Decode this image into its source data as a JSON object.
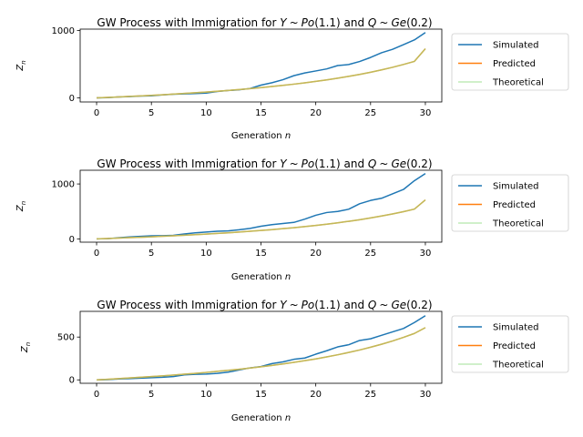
{
  "chart_data": [
    {
      "type": "line",
      "title": "GW Process with Immigration for Y ~ Po(1.1) and Q ~ Ge(0.2)",
      "title_parts": {
        "prefix": "GW Process with Immigration for ",
        "y": "Y",
        "sim": "~",
        "po": "Po",
        "po_arg": "(1.1)",
        "and": " and ",
        "q": "Q",
        "ge": "Ge",
        "ge_arg": "(0.2)"
      },
      "xlabel": "Generation n",
      "xlabel_parts": {
        "text": "Generation ",
        "var": "n"
      },
      "ylabel": "Z_n",
      "ylabel_parts": {
        "var": "Z",
        "sub": "n"
      },
      "xlim": [
        -1.5,
        31.5
      ],
      "ylim": [
        -60,
        1020
      ],
      "xticks": [
        0,
        5,
        10,
        15,
        20,
        25,
        30
      ],
      "yticks": [
        0,
        1000
      ],
      "grid": false,
      "legend_position": "outside-right",
      "series": [
        {
          "name": "Simulated",
          "color": "#1f77b4",
          "x": [
            0,
            1,
            2,
            3,
            4,
            5,
            6,
            7,
            8,
            9,
            10,
            11,
            12,
            13,
            14,
            15,
            16,
            17,
            18,
            19,
            20,
            21,
            22,
            23,
            24,
            25,
            26,
            27,
            28,
            29,
            30
          ],
          "values": [
            0,
            5,
            15,
            20,
            28,
            32,
            45,
            55,
            60,
            65,
            72,
            95,
            110,
            120,
            140,
            190,
            225,
            270,
            330,
            370,
            400,
            430,
            480,
            495,
            540,
            600,
            670,
            720,
            790,
            860,
            970
          ]
        },
        {
          "name": "Predicted",
          "color": "#ff7f0e",
          "x": [
            0,
            1,
            2,
            3,
            4,
            5,
            6,
            7,
            8,
            9,
            10,
            11,
            12,
            13,
            14,
            15,
            16,
            17,
            18,
            19,
            20,
            21,
            22,
            23,
            24,
            25,
            26,
            27,
            28,
            29,
            30
          ],
          "values": [
            0,
            7,
            14,
            22,
            30,
            38,
            47,
            56,
            66,
            76,
            87,
            99,
            111,
            124,
            138,
            153,
            169,
            186,
            204,
            224,
            245,
            268,
            293,
            320,
            349,
            381,
            416,
            454,
            496,
            542,
            730
          ]
        },
        {
          "name": "Theoretical",
          "color": "#98df8a",
          "x": [
            0,
            1,
            2,
            3,
            4,
            5,
            6,
            7,
            8,
            9,
            10,
            11,
            12,
            13,
            14,
            15,
            16,
            17,
            18,
            19,
            20,
            21,
            22,
            23,
            24,
            25,
            26,
            27,
            28,
            29,
            30
          ],
          "values": [
            0,
            7,
            14,
            22,
            30,
            38,
            47,
            56,
            66,
            76,
            87,
            99,
            111,
            124,
            138,
            153,
            169,
            186,
            204,
            224,
            245,
            268,
            293,
            320,
            349,
            381,
            416,
            454,
            496,
            542,
            730
          ]
        }
      ]
    },
    {
      "type": "line",
      "title": "GW Process with Immigration for Y ~ Po(1.1) and Q ~ Ge(0.2)",
      "title_parts": {
        "prefix": "GW Process with Immigration for ",
        "y": "Y",
        "sim": "~",
        "po": "Po",
        "po_arg": "(1.1)",
        "and": " and ",
        "q": "Q",
        "ge": "Ge",
        "ge_arg": "(0.2)"
      },
      "xlabel": "Generation n",
      "xlabel_parts": {
        "text": "Generation ",
        "var": "n"
      },
      "ylabel": "Z_n",
      "ylabel_parts": {
        "var": "Z",
        "sub": "n"
      },
      "xlim": [
        -1.5,
        31.5
      ],
      "ylim": [
        -60,
        1250
      ],
      "xticks": [
        0,
        5,
        10,
        15,
        20,
        25,
        30
      ],
      "yticks": [
        0,
        1000
      ],
      "grid": false,
      "legend_position": "outside-right",
      "series": [
        {
          "name": "Simulated",
          "color": "#1f77b4",
          "x": [
            0,
            1,
            2,
            3,
            4,
            5,
            6,
            7,
            8,
            9,
            10,
            11,
            12,
            13,
            14,
            15,
            16,
            17,
            18,
            19,
            20,
            21,
            22,
            23,
            24,
            25,
            26,
            27,
            28,
            29,
            30
          ],
          "values": [
            0,
            5,
            20,
            35,
            45,
            55,
            58,
            65,
            90,
            110,
            125,
            140,
            145,
            165,
            190,
            230,
            260,
            280,
            300,
            360,
            430,
            480,
            500,
            540,
            640,
            700,
            740,
            820,
            900,
            1060,
            1190
          ]
        },
        {
          "name": "Predicted",
          "color": "#ff7f0e",
          "x": [
            0,
            1,
            2,
            3,
            4,
            5,
            6,
            7,
            8,
            9,
            10,
            11,
            12,
            13,
            14,
            15,
            16,
            17,
            18,
            19,
            20,
            21,
            22,
            23,
            24,
            25,
            26,
            27,
            28,
            29,
            30
          ],
          "values": [
            0,
            7,
            14,
            22,
            30,
            38,
            47,
            56,
            66,
            76,
            87,
            99,
            111,
            124,
            138,
            153,
            169,
            186,
            204,
            224,
            245,
            268,
            293,
            320,
            349,
            381,
            416,
            454,
            496,
            542,
            710
          ]
        },
        {
          "name": "Theoretical",
          "color": "#98df8a",
          "x": [
            0,
            1,
            2,
            3,
            4,
            5,
            6,
            7,
            8,
            9,
            10,
            11,
            12,
            13,
            14,
            15,
            16,
            17,
            18,
            19,
            20,
            21,
            22,
            23,
            24,
            25,
            26,
            27,
            28,
            29,
            30
          ],
          "values": [
            0,
            7,
            14,
            22,
            30,
            38,
            47,
            56,
            66,
            76,
            87,
            99,
            111,
            124,
            138,
            153,
            169,
            186,
            204,
            224,
            245,
            268,
            293,
            320,
            349,
            381,
            416,
            454,
            496,
            542,
            710
          ]
        }
      ]
    },
    {
      "type": "line",
      "title": "GW Process with Immigration for Y ~ Po(1.1) and Q ~ Ge(0.2)",
      "title_parts": {
        "prefix": "GW Process with Immigration for ",
        "y": "Y",
        "sim": "~",
        "po": "Po",
        "po_arg": "(1.1)",
        "and": " and ",
        "q": "Q",
        "ge": "Ge",
        "ge_arg": "(0.2)"
      },
      "xlabel": "Generation n",
      "xlabel_parts": {
        "text": "Generation ",
        "var": "n"
      },
      "ylabel": "Z_n",
      "ylabel_parts": {
        "var": "Z",
        "sub": "n"
      },
      "xlim": [
        -1.5,
        31.5
      ],
      "ylim": [
        -40,
        800
      ],
      "xticks": [
        0,
        5,
        10,
        15,
        20,
        25,
        30
      ],
      "yticks": [
        0,
        500
      ],
      "grid": false,
      "legend_position": "outside-right",
      "series": [
        {
          "name": "Simulated",
          "color": "#1f77b4",
          "x": [
            0,
            1,
            2,
            3,
            4,
            5,
            6,
            7,
            8,
            9,
            10,
            11,
            12,
            13,
            14,
            15,
            16,
            17,
            18,
            19,
            20,
            21,
            22,
            23,
            24,
            25,
            26,
            27,
            28,
            29,
            30
          ],
          "values": [
            0,
            3,
            10,
            15,
            20,
            25,
            30,
            38,
            58,
            65,
            68,
            75,
            90,
            115,
            140,
            155,
            190,
            210,
            240,
            255,
            300,
            340,
            385,
            410,
            460,
            480,
            520,
            560,
            600,
            670,
            750
          ]
        },
        {
          "name": "Predicted",
          "color": "#ff7f0e",
          "x": [
            0,
            1,
            2,
            3,
            4,
            5,
            6,
            7,
            8,
            9,
            10,
            11,
            12,
            13,
            14,
            15,
            16,
            17,
            18,
            19,
            20,
            21,
            22,
            23,
            24,
            25,
            26,
            27,
            28,
            29,
            30
          ],
          "values": [
            0,
            7,
            14,
            22,
            30,
            38,
            47,
            56,
            66,
            76,
            87,
            99,
            111,
            124,
            138,
            153,
            169,
            186,
            204,
            224,
            245,
            268,
            293,
            320,
            349,
            381,
            416,
            454,
            496,
            542,
            610
          ]
        },
        {
          "name": "Theoretical",
          "color": "#98df8a",
          "x": [
            0,
            1,
            2,
            3,
            4,
            5,
            6,
            7,
            8,
            9,
            10,
            11,
            12,
            13,
            14,
            15,
            16,
            17,
            18,
            19,
            20,
            21,
            22,
            23,
            24,
            25,
            26,
            27,
            28,
            29,
            30
          ],
          "values": [
            0,
            7,
            14,
            22,
            30,
            38,
            47,
            56,
            66,
            76,
            87,
            99,
            111,
            124,
            138,
            153,
            169,
            186,
            204,
            224,
            245,
            268,
            293,
            320,
            349,
            381,
            416,
            454,
            496,
            542,
            610
          ]
        }
      ]
    }
  ]
}
